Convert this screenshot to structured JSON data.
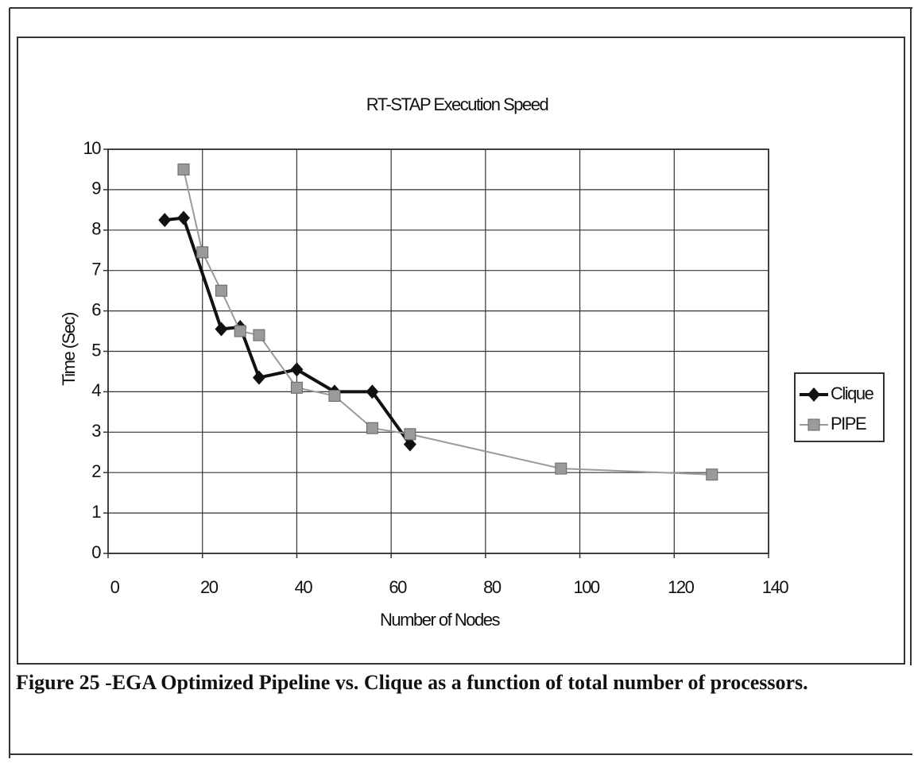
{
  "chart_data": {
    "type": "line",
    "title": "RT-STAP Execution Speed",
    "xlabel": "Number of Nodes",
    "ylabel": "Time (Sec)",
    "xlim": [
      0,
      140
    ],
    "xticks": [
      0,
      20,
      40,
      60,
      80,
      100,
      120,
      140
    ],
    "ylim": [
      0,
      10
    ],
    "yticks": [
      0,
      1,
      2,
      3,
      4,
      5,
      6,
      7,
      8,
      9,
      10
    ],
    "grid": true,
    "legend": "right",
    "series": [
      {
        "name": "Clique",
        "color": "#111111",
        "marker": "diamond",
        "x": [
          12,
          16,
          24,
          28,
          32,
          40,
          48,
          56,
          64
        ],
        "values": [
          8.25,
          8.3,
          5.55,
          5.6,
          4.35,
          4.55,
          4.0,
          4.0,
          2.7
        ]
      },
      {
        "name": "PIPE",
        "color": "#9a9a9a",
        "marker": "square",
        "x": [
          16,
          20,
          24,
          28,
          32,
          40,
          48,
          56,
          64,
          96,
          128
        ],
        "values": [
          9.5,
          7.45,
          6.5,
          5.5,
          5.4,
          4.1,
          3.9,
          3.1,
          2.95,
          2.1,
          1.95
        ]
      }
    ]
  },
  "caption": "Figure 25 -EGA Optimized Pipeline vs. Clique as a function of total number of processors."
}
